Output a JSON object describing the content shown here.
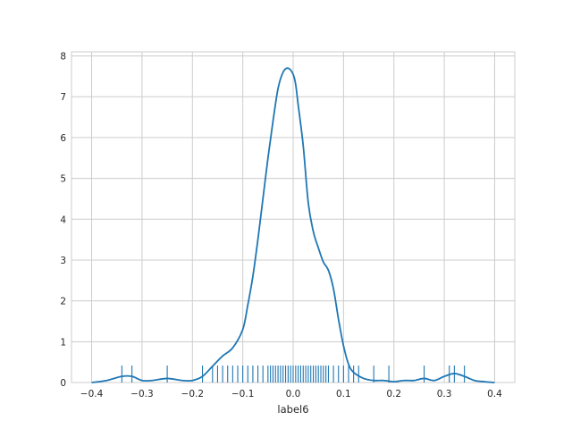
{
  "chart_data": {
    "type": "line",
    "title": "",
    "xlabel": "label6",
    "ylabel": "",
    "xlim": [
      -0.44,
      0.44
    ],
    "ylim": [
      0,
      8.1
    ],
    "grid": true,
    "legend": "none",
    "colors": {
      "line": "#1f77b4",
      "grid": "#cccccc",
      "background": "#ffffff",
      "text": "#262626"
    },
    "x_ticks": [
      -0.4,
      -0.3,
      -0.2,
      -0.1,
      0.0,
      0.1,
      0.2,
      0.3,
      0.4
    ],
    "x_tick_labels": [
      "−0.4",
      "−0.3",
      "−0.2",
      "−0.1",
      "0.0",
      "0.1",
      "0.2",
      "0.3",
      "0.4"
    ],
    "y_ticks": [
      0,
      1,
      2,
      3,
      4,
      5,
      6,
      7,
      8
    ],
    "y_tick_labels": [
      "0",
      "1",
      "2",
      "3",
      "4",
      "5",
      "6",
      "7",
      "8"
    ],
    "series": [
      {
        "kind": "kde",
        "x": [
          -0.4,
          -0.37,
          -0.34,
          -0.32,
          -0.3,
          -0.28,
          -0.25,
          -0.22,
          -0.2,
          -0.18,
          -0.16,
          -0.14,
          -0.12,
          -0.1,
          -0.09,
          -0.08,
          -0.07,
          -0.06,
          -0.05,
          -0.04,
          -0.03,
          -0.02,
          -0.01,
          0.0,
          0.005,
          0.01,
          0.02,
          0.03,
          0.04,
          0.05,
          0.06,
          0.07,
          0.08,
          0.09,
          0.1,
          0.11,
          0.12,
          0.14,
          0.16,
          0.18,
          0.2,
          0.22,
          0.24,
          0.26,
          0.28,
          0.3,
          0.32,
          0.34,
          0.36,
          0.38,
          0.4
        ],
        "y": [
          0.0,
          0.05,
          0.15,
          0.15,
          0.05,
          0.05,
          0.1,
          0.05,
          0.05,
          0.15,
          0.4,
          0.65,
          0.85,
          1.3,
          1.9,
          2.6,
          3.5,
          4.5,
          5.5,
          6.4,
          7.2,
          7.6,
          7.7,
          7.55,
          7.3,
          6.8,
          5.8,
          4.4,
          3.7,
          3.3,
          2.95,
          2.75,
          2.3,
          1.55,
          0.9,
          0.45,
          0.25,
          0.1,
          0.05,
          0.05,
          0.02,
          0.05,
          0.05,
          0.1,
          0.05,
          0.15,
          0.22,
          0.15,
          0.05,
          0.02,
          0.0
        ]
      }
    ],
    "rug": [
      -0.34,
      -0.32,
      -0.25,
      -0.18,
      -0.16,
      -0.15,
      -0.14,
      -0.13,
      -0.12,
      -0.11,
      -0.1,
      -0.09,
      -0.08,
      -0.07,
      -0.06,
      -0.05,
      -0.045,
      -0.04,
      -0.035,
      -0.03,
      -0.025,
      -0.02,
      -0.015,
      -0.01,
      -0.005,
      0.0,
      0.005,
      0.01,
      0.015,
      0.02,
      0.025,
      0.03,
      0.035,
      0.04,
      0.045,
      0.05,
      0.055,
      0.06,
      0.065,
      0.07,
      0.08,
      0.09,
      0.1,
      0.11,
      0.12,
      0.13,
      0.16,
      0.19,
      0.26,
      0.31,
      0.32,
      0.34
    ]
  }
}
